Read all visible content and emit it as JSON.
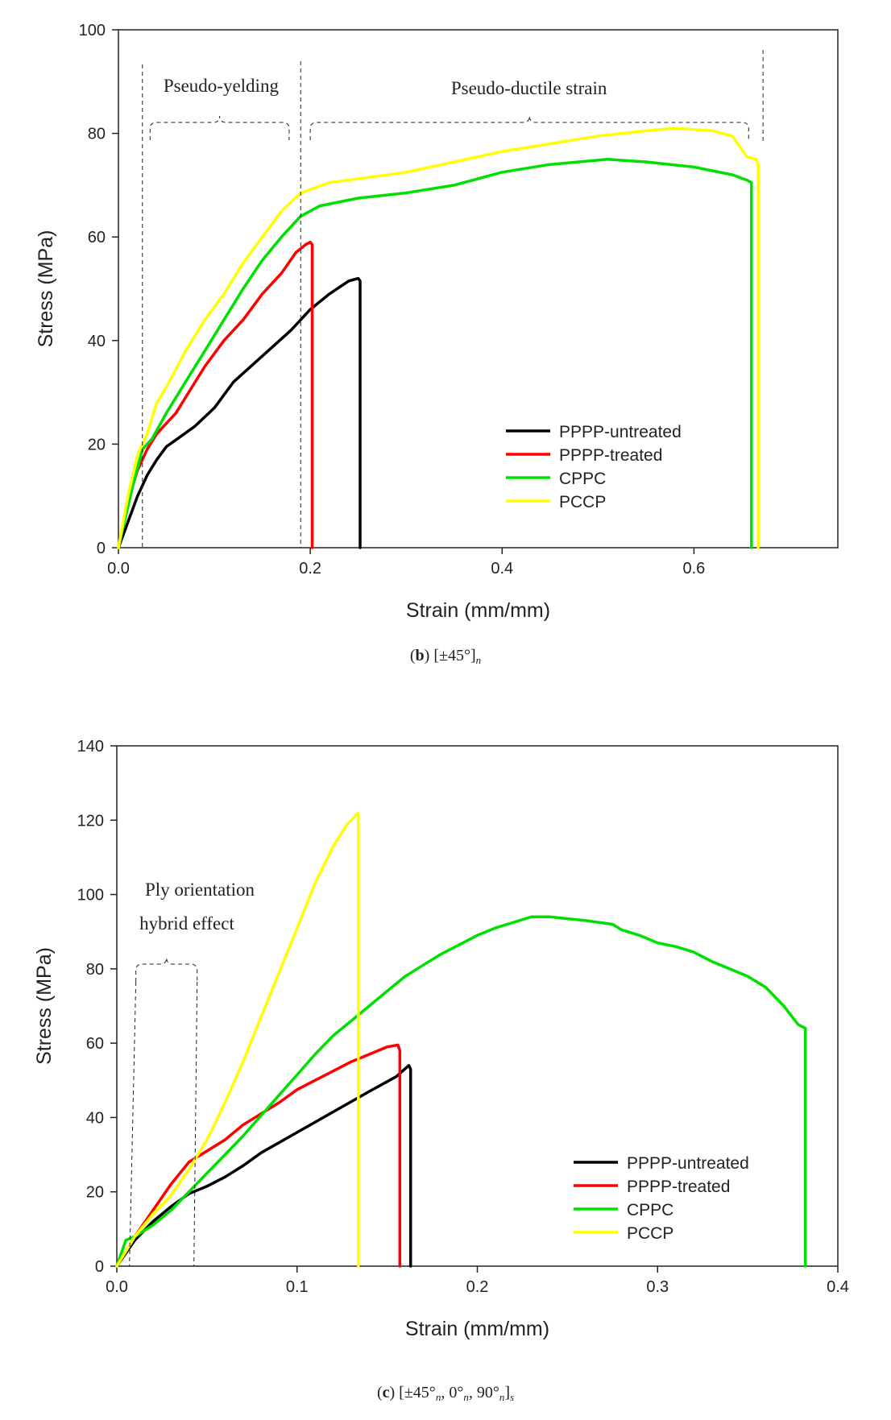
{
  "chart_data": [
    {
      "type": "line",
      "caption": {
        "letter": "b",
        "rest": " [±45°]",
        "sub": "n"
      },
      "xlabel": "Strain (mm/mm)",
      "ylabel": "Stress (MPa)",
      "xlim": [
        0,
        0.75
      ],
      "ylim": [
        0,
        100
      ],
      "xticks": [
        "0.0",
        "0.2",
        "0.4",
        "0.6"
      ],
      "xtick_values": [
        0,
        0.2,
        0.4,
        0.6
      ],
      "yticks": [
        "0",
        "20",
        "40",
        "60",
        "80",
        "100"
      ],
      "ytick_values": [
        0,
        20,
        40,
        60,
        80,
        100
      ],
      "legend_position": "bottom-right",
      "annotations": [
        {
          "text": "Pseudo-yelding",
          "x_range": [
            0.025,
            0.19
          ],
          "y_text": 89
        },
        {
          "text": "Pseudo-ductile strain",
          "x_range": [
            0.19,
            0.672
          ],
          "y_text": 89
        }
      ],
      "series": [
        {
          "name": "PPPP-untreated",
          "color": "#000000",
          "points": [
            [
              0,
              0
            ],
            [
              0.01,
              5
            ],
            [
              0.02,
              10
            ],
            [
              0.03,
              14
            ],
            [
              0.04,
              17
            ],
            [
              0.05,
              19.5
            ],
            [
              0.065,
              21.5
            ],
            [
              0.08,
              23.5
            ],
            [
              0.1,
              27
            ],
            [
              0.12,
              32
            ],
            [
              0.15,
              37
            ],
            [
              0.18,
              42
            ],
            [
              0.2,
              46
            ],
            [
              0.22,
              49
            ],
            [
              0.24,
              51.5
            ],
            [
              0.25,
              52
            ],
            [
              0.252,
              51.5
            ],
            [
              0.252,
              0
            ]
          ]
        },
        {
          "name": "PPPP-treated",
          "color": "#ff0000",
          "points": [
            [
              0,
              0
            ],
            [
              0.01,
              9
            ],
            [
              0.02,
              15
            ],
            [
              0.03,
              19
            ],
            [
              0.04,
              22
            ],
            [
              0.06,
              26
            ],
            [
              0.07,
              29
            ],
            [
              0.09,
              35
            ],
            [
              0.11,
              40
            ],
            [
              0.13,
              44
            ],
            [
              0.15,
              49
            ],
            [
              0.17,
              53
            ],
            [
              0.185,
              57
            ],
            [
              0.195,
              58.5
            ],
            [
              0.2,
              59
            ],
            [
              0.202,
              58.5
            ],
            [
              0.202,
              0
            ]
          ]
        },
        {
          "name": "CPPC",
          "color": "#00e000",
          "points": [
            [
              0,
              0
            ],
            [
              0.015,
              12
            ],
            [
              0.025,
              19
            ],
            [
              0.035,
              21
            ],
            [
              0.05,
              26
            ],
            [
              0.07,
              32
            ],
            [
              0.09,
              38
            ],
            [
              0.11,
              44
            ],
            [
              0.13,
              50
            ],
            [
              0.15,
              55.5
            ],
            [
              0.17,
              60
            ],
            [
              0.19,
              64
            ],
            [
              0.21,
              66
            ],
            [
              0.25,
              67.5
            ],
            [
              0.3,
              68.5
            ],
            [
              0.35,
              70
            ],
            [
              0.4,
              72.5
            ],
            [
              0.45,
              74
            ],
            [
              0.51,
              75
            ],
            [
              0.55,
              74.5
            ],
            [
              0.6,
              73.5
            ],
            [
              0.64,
              72
            ],
            [
              0.655,
              71
            ],
            [
              0.66,
              70.5
            ],
            [
              0.66,
              0
            ]
          ]
        },
        {
          "name": "PCCP",
          "color": "#ffff00",
          "points": [
            [
              0,
              0
            ],
            [
              0.01,
              10
            ],
            [
              0.02,
              18
            ],
            [
              0.03,
              22
            ],
            [
              0.04,
              28
            ],
            [
              0.05,
              31
            ],
            [
              0.07,
              38
            ],
            [
              0.09,
              44
            ],
            [
              0.11,
              49
            ],
            [
              0.13,
              55
            ],
            [
              0.15,
              60
            ],
            [
              0.17,
              65
            ],
            [
              0.19,
              68.5
            ],
            [
              0.22,
              70.5
            ],
            [
              0.26,
              71.5
            ],
            [
              0.3,
              72.5
            ],
            [
              0.35,
              74.5
            ],
            [
              0.4,
              76.5
            ],
            [
              0.45,
              78
            ],
            [
              0.5,
              79.5
            ],
            [
              0.55,
              80.5
            ],
            [
              0.58,
              81
            ],
            [
              0.62,
              80.5
            ],
            [
              0.64,
              79.5
            ],
            [
              0.655,
              75.5
            ],
            [
              0.665,
              75
            ],
            [
              0.667,
              74
            ],
            [
              0.667,
              0
            ]
          ]
        }
      ]
    },
    {
      "type": "line",
      "caption": {
        "letter": "c",
        "parts": [
          " [±45°",
          "n",
          ", 0°",
          "n",
          ", 90°",
          "n",
          "]",
          "s"
        ]
      },
      "xlabel": "Strain (mm/mm)",
      "ylabel": "Stress (MPa)",
      "xlim": [
        0,
        0.4
      ],
      "ylim": [
        0,
        140
      ],
      "xticks": [
        "0.0",
        "0.1",
        "0.2",
        "0.3",
        "0.4"
      ],
      "xtick_values": [
        0,
        0.1,
        0.2,
        0.3,
        0.4
      ],
      "yticks": [
        "0",
        "20",
        "40",
        "60",
        "80",
        "100",
        "120",
        "140"
      ],
      "ytick_values": [
        0,
        20,
        40,
        60,
        80,
        100,
        120,
        140
      ],
      "legend_position": "bottom-right",
      "annotations": [
        {
          "text": "Ply orientation",
          "line2": "hybrid effect",
          "x_range": [
            0.007,
            0.045
          ]
        }
      ],
      "series": [
        {
          "name": "PPPP-untreated",
          "color": "#000000",
          "points": [
            [
              0,
              0
            ],
            [
              0.01,
              7
            ],
            [
              0.02,
              12
            ],
            [
              0.03,
              16
            ],
            [
              0.04,
              19.5
            ],
            [
              0.05,
              21.5
            ],
            [
              0.06,
              24
            ],
            [
              0.07,
              27
            ],
            [
              0.08,
              30.5
            ],
            [
              0.1,
              36
            ],
            [
              0.12,
              41.5
            ],
            [
              0.14,
              47
            ],
            [
              0.155,
              51
            ],
            [
              0.162,
              54
            ],
            [
              0.163,
              53
            ],
            [
              0.163,
              0
            ]
          ]
        },
        {
          "name": "PPPP-treated",
          "color": "#ff0000",
          "points": [
            [
              0,
              0
            ],
            [
              0.01,
              8
            ],
            [
              0.02,
              15
            ],
            [
              0.03,
              22
            ],
            [
              0.04,
              28
            ],
            [
              0.05,
              31
            ],
            [
              0.06,
              34
            ],
            [
              0.07,
              38
            ],
            [
              0.08,
              41
            ],
            [
              0.09,
              44
            ],
            [
              0.1,
              47.5
            ],
            [
              0.11,
              50
            ],
            [
              0.12,
              52.5
            ],
            [
              0.13,
              55
            ],
            [
              0.14,
              57
            ],
            [
              0.15,
              59
            ],
            [
              0.156,
              59.5
            ],
            [
              0.157,
              58
            ],
            [
              0.157,
              0
            ]
          ]
        },
        {
          "name": "CPPC",
          "color": "#00e000",
          "points": [
            [
              0,
              0
            ],
            [
              0.005,
              7
            ],
            [
              0.01,
              8
            ],
            [
              0.02,
              11
            ],
            [
              0.03,
              15
            ],
            [
              0.04,
              20
            ],
            [
              0.05,
              25
            ],
            [
              0.06,
              30
            ],
            [
              0.07,
              35
            ],
            [
              0.08,
              40.5
            ],
            [
              0.09,
              46
            ],
            [
              0.1,
              51.5
            ],
            [
              0.11,
              57
            ],
            [
              0.12,
              62
            ],
            [
              0.13,
              66
            ],
            [
              0.14,
              70
            ],
            [
              0.15,
              74
            ],
            [
              0.16,
              78
            ],
            [
              0.17,
              81
            ],
            [
              0.18,
              84
            ],
            [
              0.19,
              86.5
            ],
            [
              0.2,
              89
            ],
            [
              0.21,
              91
            ],
            [
              0.22,
              92.5
            ],
            [
              0.23,
              94
            ],
            [
              0.24,
              94
            ],
            [
              0.25,
              93.5
            ],
            [
              0.26,
              93
            ],
            [
              0.275,
              92
            ],
            [
              0.28,
              90.5
            ],
            [
              0.29,
              89
            ],
            [
              0.3,
              87
            ],
            [
              0.31,
              86
            ],
            [
              0.32,
              84.5
            ],
            [
              0.33,
              82
            ],
            [
              0.34,
              80
            ],
            [
              0.35,
              78
            ],
            [
              0.36,
              75
            ],
            [
              0.37,
              70
            ],
            [
              0.378,
              65
            ],
            [
              0.382,
              64
            ],
            [
              0.382,
              0
            ]
          ]
        },
        {
          "name": "PCCP",
          "color": "#ffff00",
          "points": [
            [
              0,
              0
            ],
            [
              0.01,
              8
            ],
            [
              0.02,
              14
            ],
            [
              0.03,
              19
            ],
            [
              0.04,
              26
            ],
            [
              0.05,
              34
            ],
            [
              0.06,
              44
            ],
            [
              0.07,
              55
            ],
            [
              0.08,
              67
            ],
            [
              0.09,
              79
            ],
            [
              0.1,
              91
            ],
            [
              0.11,
              103
            ],
            [
              0.12,
              113
            ],
            [
              0.128,
              119
            ],
            [
              0.134,
              122
            ],
            [
              0.134,
              0
            ]
          ]
        }
      ]
    }
  ]
}
